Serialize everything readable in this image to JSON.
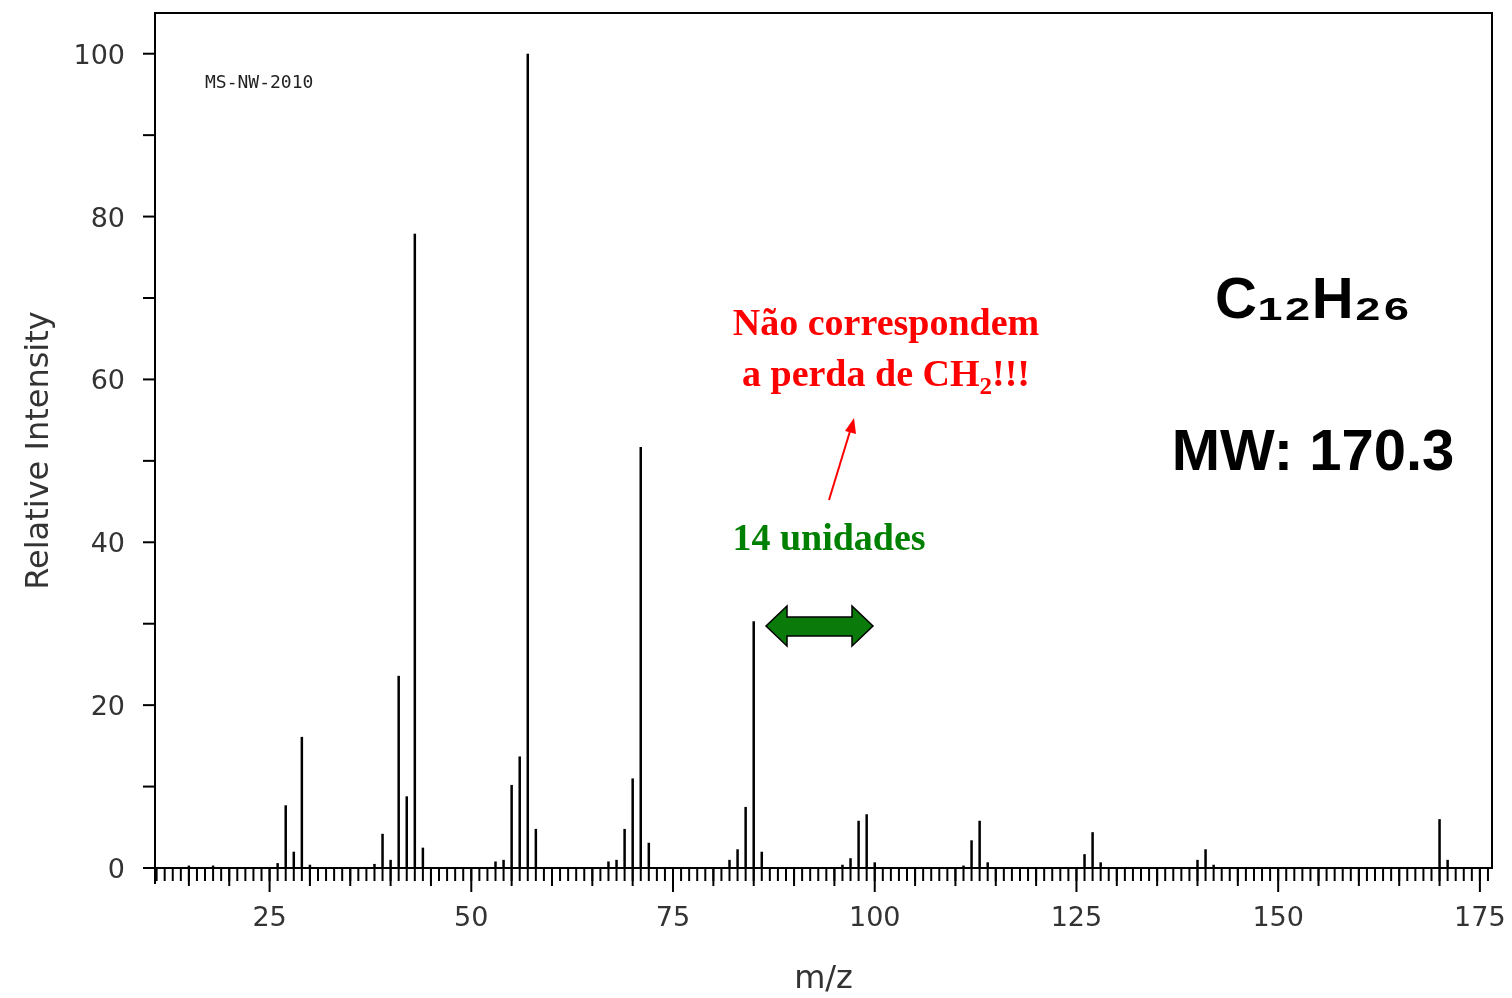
{
  "chart_data": {
    "type": "bar",
    "xlabel": "m/z",
    "ylabel": "Relative Intensity",
    "x": [
      15,
      18,
      26,
      27,
      28,
      29,
      30,
      38,
      39,
      40,
      41,
      42,
      43,
      44,
      53,
      54,
      55,
      56,
      57,
      58,
      67,
      68,
      69,
      70,
      71,
      72,
      82,
      83,
      84,
      85,
      86,
      96,
      97,
      98,
      99,
      100,
      111,
      112,
      113,
      114,
      126,
      127,
      128,
      140,
      141,
      142,
      170,
      171
    ],
    "values": [
      0.3,
      0.3,
      0.6,
      7.7,
      2,
      16.1,
      0.4,
      0.5,
      4.2,
      1,
      23.6,
      8.8,
      77.9,
      2.5,
      0.8,
      1,
      10.2,
      13.7,
      100,
      4.8,
      0.8,
      1,
      4.8,
      11,
      51.7,
      3.1,
      1,
      2.3,
      7.5,
      30.3,
      2,
      0.4,
      1.2,
      5.8,
      6.6,
      0.7,
      0.3,
      3.4,
      5.8,
      0.7,
      1.7,
      4.4,
      0.7,
      1,
      2.3,
      0.4,
      6,
      1
    ],
    "color": "#000000",
    "xlim": [
      10.8,
      176.5
    ],
    "ylim": [
      0,
      105
    ],
    "xticks": [
      {
        "value": 15,
        "label": null
      },
      {
        "value": 20,
        "label": null
      },
      25,
      {
        "value": 30,
        "label": null
      },
      {
        "value": 35,
        "label": null
      },
      {
        "value": 40,
        "label": null
      },
      {
        "value": 45,
        "label": null
      },
      50,
      {
        "value": 55,
        "label": null
      },
      {
        "value": 60,
        "label": null
      },
      {
        "value": 65,
        "label": null
      },
      {
        "value": 70,
        "label": null
      },
      75,
      {
        "value": 80,
        "label": null
      },
      {
        "value": 85,
        "label": null
      },
      {
        "value": 90,
        "label": null
      },
      {
        "value": 95,
        "label": null
      },
      100,
      {
        "value": 105,
        "label": null
      },
      {
        "value": 110,
        "label": null
      },
      {
        "value": 115,
        "label": null
      },
      {
        "value": 120,
        "label": null
      },
      125,
      {
        "value": 130,
        "label": null
      },
      {
        "value": 135,
        "label": null
      },
      {
        "value": 140,
        "label": null
      },
      {
        "value": 145,
        "label": null
      },
      150,
      {
        "value": 155,
        "label": null
      },
      {
        "value": 160,
        "label": null
      },
      {
        "value": 165,
        "label": null
      },
      {
        "value": 170,
        "label": null
      },
      175
    ],
    "yticks": [
      0,
      {
        "value": 10,
        "label": null
      },
      20,
      {
        "value": 30,
        "label": null
      },
      40,
      {
        "value": 50,
        "label": null
      },
      60,
      {
        "value": 70,
        "label": null
      },
      80,
      {
        "value": 90,
        "label": null
      },
      100
    ],
    "annotations": [
      "MS-NW-2010",
      "C₁₂H₂₆",
      "MW: 170.3",
      "Não correspondem\na perda de CH₂!!!",
      "14 unidades"
    ]
  }
}
